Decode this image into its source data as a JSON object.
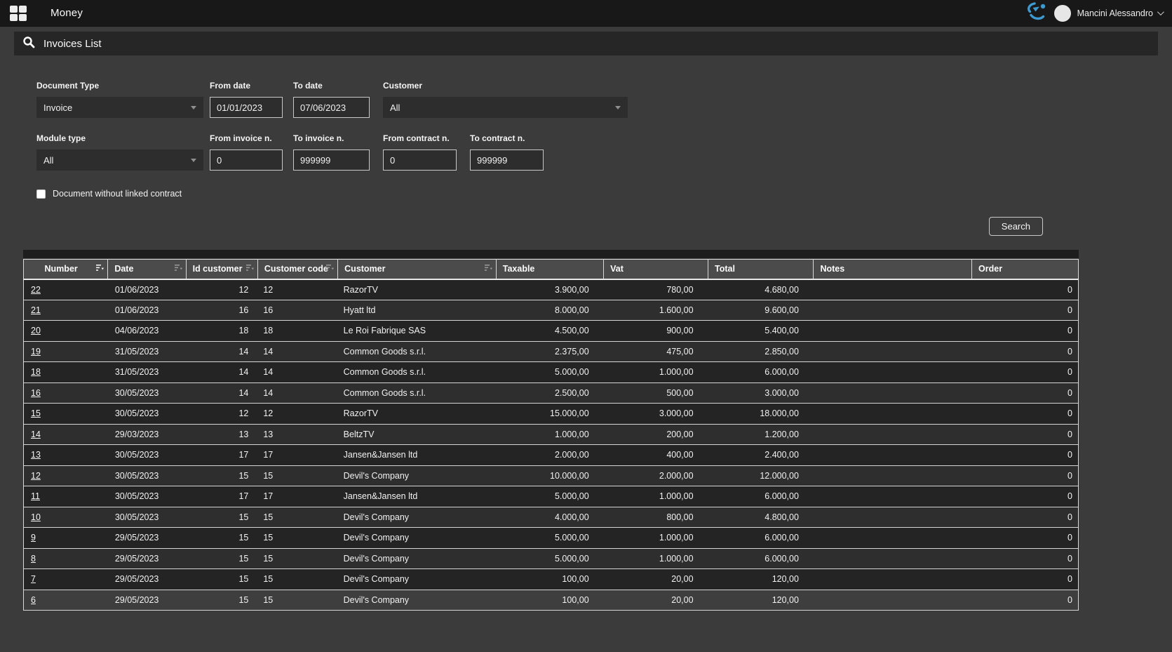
{
  "topbar": {
    "title": "Money",
    "user": "Mancini Alessandro"
  },
  "pagebar": {
    "title": "Invoices List"
  },
  "filters": {
    "document_type": {
      "label": "Document Type",
      "value": "Invoice"
    },
    "from_date": {
      "label": "From date",
      "value": "01/01/2023"
    },
    "to_date": {
      "label": "To date",
      "value": "07/06/2023"
    },
    "customer": {
      "label": "Customer",
      "value": "All"
    },
    "module_type": {
      "label": "Module type",
      "value": "All"
    },
    "from_invoice": {
      "label": "From invoice n.",
      "value": "0"
    },
    "to_invoice": {
      "label": "To invoice n.",
      "value": "999999"
    },
    "from_contract": {
      "label": "From contract n.",
      "value": "0"
    },
    "to_contract": {
      "label": "To contract n.",
      "value": "999999"
    },
    "without_contract_label": "Document without linked contract",
    "without_contract_checked": false,
    "search_button": "Search"
  },
  "table": {
    "columns": [
      {
        "label": "Number",
        "sort": "active"
      },
      {
        "label": "Date",
        "sort": "idle"
      },
      {
        "label": "Id customer",
        "sort": "idle"
      },
      {
        "label": "Customer code",
        "sort": "idle"
      },
      {
        "label": "Customer",
        "sort": "idle"
      },
      {
        "label": "Taxable",
        "sort": "none"
      },
      {
        "label": "Vat",
        "sort": "none"
      },
      {
        "label": "Total",
        "sort": "none"
      },
      {
        "label": "Notes",
        "sort": "none"
      },
      {
        "label": "Order",
        "sort": "none"
      }
    ],
    "rows": [
      {
        "number": "22",
        "date": "01/06/2023",
        "id_customer": "12",
        "customer_code": "12",
        "customer": "RazorTV",
        "taxable": "3.900,00",
        "vat": "780,00",
        "total": "4.680,00",
        "notes": "",
        "order": "0"
      },
      {
        "number": "21",
        "date": "01/06/2023",
        "id_customer": "16",
        "customer_code": "16",
        "customer": "Hyatt ltd",
        "taxable": "8.000,00",
        "vat": "1.600,00",
        "total": "9.600,00",
        "notes": "",
        "order": "0"
      },
      {
        "number": "20",
        "date": "04/06/2023",
        "id_customer": "18",
        "customer_code": "18",
        "customer": "Le Roi Fabrique SAS",
        "taxable": "4.500,00",
        "vat": "900,00",
        "total": "5.400,00",
        "notes": "",
        "order": "0"
      },
      {
        "number": "19",
        "date": "31/05/2023",
        "id_customer": "14",
        "customer_code": "14",
        "customer": "Common Goods s.r.l.",
        "taxable": "2.375,00",
        "vat": "475,00",
        "total": "2.850,00",
        "notes": "",
        "order": "0"
      },
      {
        "number": "18",
        "date": "31/05/2023",
        "id_customer": "14",
        "customer_code": "14",
        "customer": "Common Goods s.r.l.",
        "taxable": "5.000,00",
        "vat": "1.000,00",
        "total": "6.000,00",
        "notes": "",
        "order": "0"
      },
      {
        "number": "16",
        "date": "30/05/2023",
        "id_customer": "14",
        "customer_code": "14",
        "customer": "Common Goods s.r.l.",
        "taxable": "2.500,00",
        "vat": "500,00",
        "total": "3.000,00",
        "notes": "",
        "order": "0"
      },
      {
        "number": "15",
        "date": "30/05/2023",
        "id_customer": "12",
        "customer_code": "12",
        "customer": "RazorTV",
        "taxable": "15.000,00",
        "vat": "3.000,00",
        "total": "18.000,00",
        "notes": "",
        "order": "0"
      },
      {
        "number": "14",
        "date": "29/03/2023",
        "id_customer": "13",
        "customer_code": "13",
        "customer": "BeltzTV",
        "taxable": "1.000,00",
        "vat": "200,00",
        "total": "1.200,00",
        "notes": "",
        "order": "0"
      },
      {
        "number": "13",
        "date": "30/05/2023",
        "id_customer": "17",
        "customer_code": "17",
        "customer": "Jansen&Jansen ltd",
        "taxable": "2.000,00",
        "vat": "400,00",
        "total": "2.400,00",
        "notes": "",
        "order": "0"
      },
      {
        "number": "12",
        "date": "30/05/2023",
        "id_customer": "15",
        "customer_code": "15",
        "customer": "Devil's Company",
        "taxable": "10.000,00",
        "vat": "2.000,00",
        "total": "12.000,00",
        "notes": "",
        "order": "0"
      },
      {
        "number": "11",
        "date": "30/05/2023",
        "id_customer": "17",
        "customer_code": "17",
        "customer": "Jansen&Jansen ltd",
        "taxable": "5.000,00",
        "vat": "1.000,00",
        "total": "6.000,00",
        "notes": "",
        "order": "0"
      },
      {
        "number": "10",
        "date": "30/05/2023",
        "id_customer": "15",
        "customer_code": "15",
        "customer": "Devil's Company",
        "taxable": "4.000,00",
        "vat": "800,00",
        "total": "4.800,00",
        "notes": "",
        "order": "0"
      },
      {
        "number": "9",
        "date": "29/05/2023",
        "id_customer": "15",
        "customer_code": "15",
        "customer": "Devil's Company",
        "taxable": "5.000,00",
        "vat": "1.000,00",
        "total": "6.000,00",
        "notes": "",
        "order": "0"
      },
      {
        "number": "8",
        "date": "29/05/2023",
        "id_customer": "15",
        "customer_code": "15",
        "customer": "Devil's Company",
        "taxable": "5.000,00",
        "vat": "1.000,00",
        "total": "6.000,00",
        "notes": "",
        "order": "0"
      },
      {
        "number": "7",
        "date": "29/05/2023",
        "id_customer": "15",
        "customer_code": "15",
        "customer": "Devil's Company",
        "taxable": "100,00",
        "vat": "20,00",
        "total": "120,00",
        "notes": "",
        "order": "0"
      },
      {
        "number": "6",
        "date": "29/05/2023",
        "id_customer": "15",
        "customer_code": "15",
        "customer": "Devil's Company",
        "taxable": "100,00",
        "vat": "20,00",
        "total": "120,00",
        "notes": "",
        "order": "0",
        "highlight": true
      }
    ]
  },
  "icons": {
    "apps_grid": "apps-grid-icon",
    "search": "search-icon",
    "logo": "brand-logo-icon",
    "chevron_down": "chevron-down-icon",
    "sort": "sort-icon"
  },
  "colors": {
    "accent_blue": "#3d9ad1",
    "topbar_bg": "#181818",
    "page_bg": "#3b3b3b",
    "table_header_bg": "#4b4b4b",
    "row_dark": "#242424",
    "row_light": "#2e2e2e"
  }
}
